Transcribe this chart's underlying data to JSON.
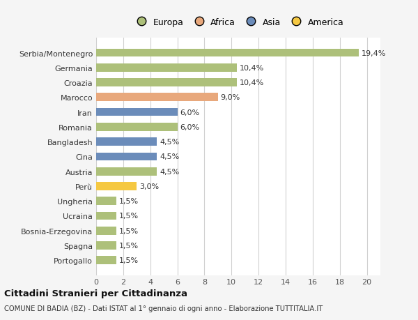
{
  "categories": [
    "Serbia/Montenegro",
    "Germania",
    "Croazia",
    "Marocco",
    "Iran",
    "Romania",
    "Bangladesh",
    "Cina",
    "Austria",
    "Perù",
    "Ungheria",
    "Ucraina",
    "Bosnia-Erzegovina",
    "Spagna",
    "Portogallo"
  ],
  "values": [
    19.4,
    10.4,
    10.4,
    9.0,
    6.0,
    6.0,
    4.5,
    4.5,
    4.5,
    3.0,
    1.5,
    1.5,
    1.5,
    1.5,
    1.5
  ],
  "labels": [
    "19,4%",
    "10,4%",
    "10,4%",
    "9,0%",
    "6,0%",
    "6,0%",
    "4,5%",
    "4,5%",
    "4,5%",
    "3,0%",
    "1,5%",
    "1,5%",
    "1,5%",
    "1,5%",
    "1,5%"
  ],
  "colors": [
    "#adc07a",
    "#adc07a",
    "#adc07a",
    "#e8a87c",
    "#6b8cba",
    "#adc07a",
    "#6b8cba",
    "#6b8cba",
    "#adc07a",
    "#f5c842",
    "#adc07a",
    "#adc07a",
    "#adc07a",
    "#adc07a",
    "#adc07a"
  ],
  "legend_labels": [
    "Europa",
    "Africa",
    "Asia",
    "America"
  ],
  "legend_colors": [
    "#adc07a",
    "#e8a87c",
    "#6b8cba",
    "#f5c842"
  ],
  "xlim": [
    0,
    21
  ],
  "xticks": [
    0,
    2,
    4,
    6,
    8,
    10,
    12,
    14,
    16,
    18,
    20
  ],
  "title": "Cittadini Stranieri per Cittadinanza",
  "subtitle": "COMUNE DI BADIA (BZ) - Dati ISTAT al 1° gennaio di ogni anno - Elaborazione TUTTITALIA.IT",
  "bg_color": "#f5f5f5",
  "bar_bg_color": "#ffffff",
  "grid_color": "#d0d0d0",
  "bar_height": 0.55,
  "label_fontsize": 8,
  "ytick_fontsize": 8,
  "xtick_fontsize": 8
}
